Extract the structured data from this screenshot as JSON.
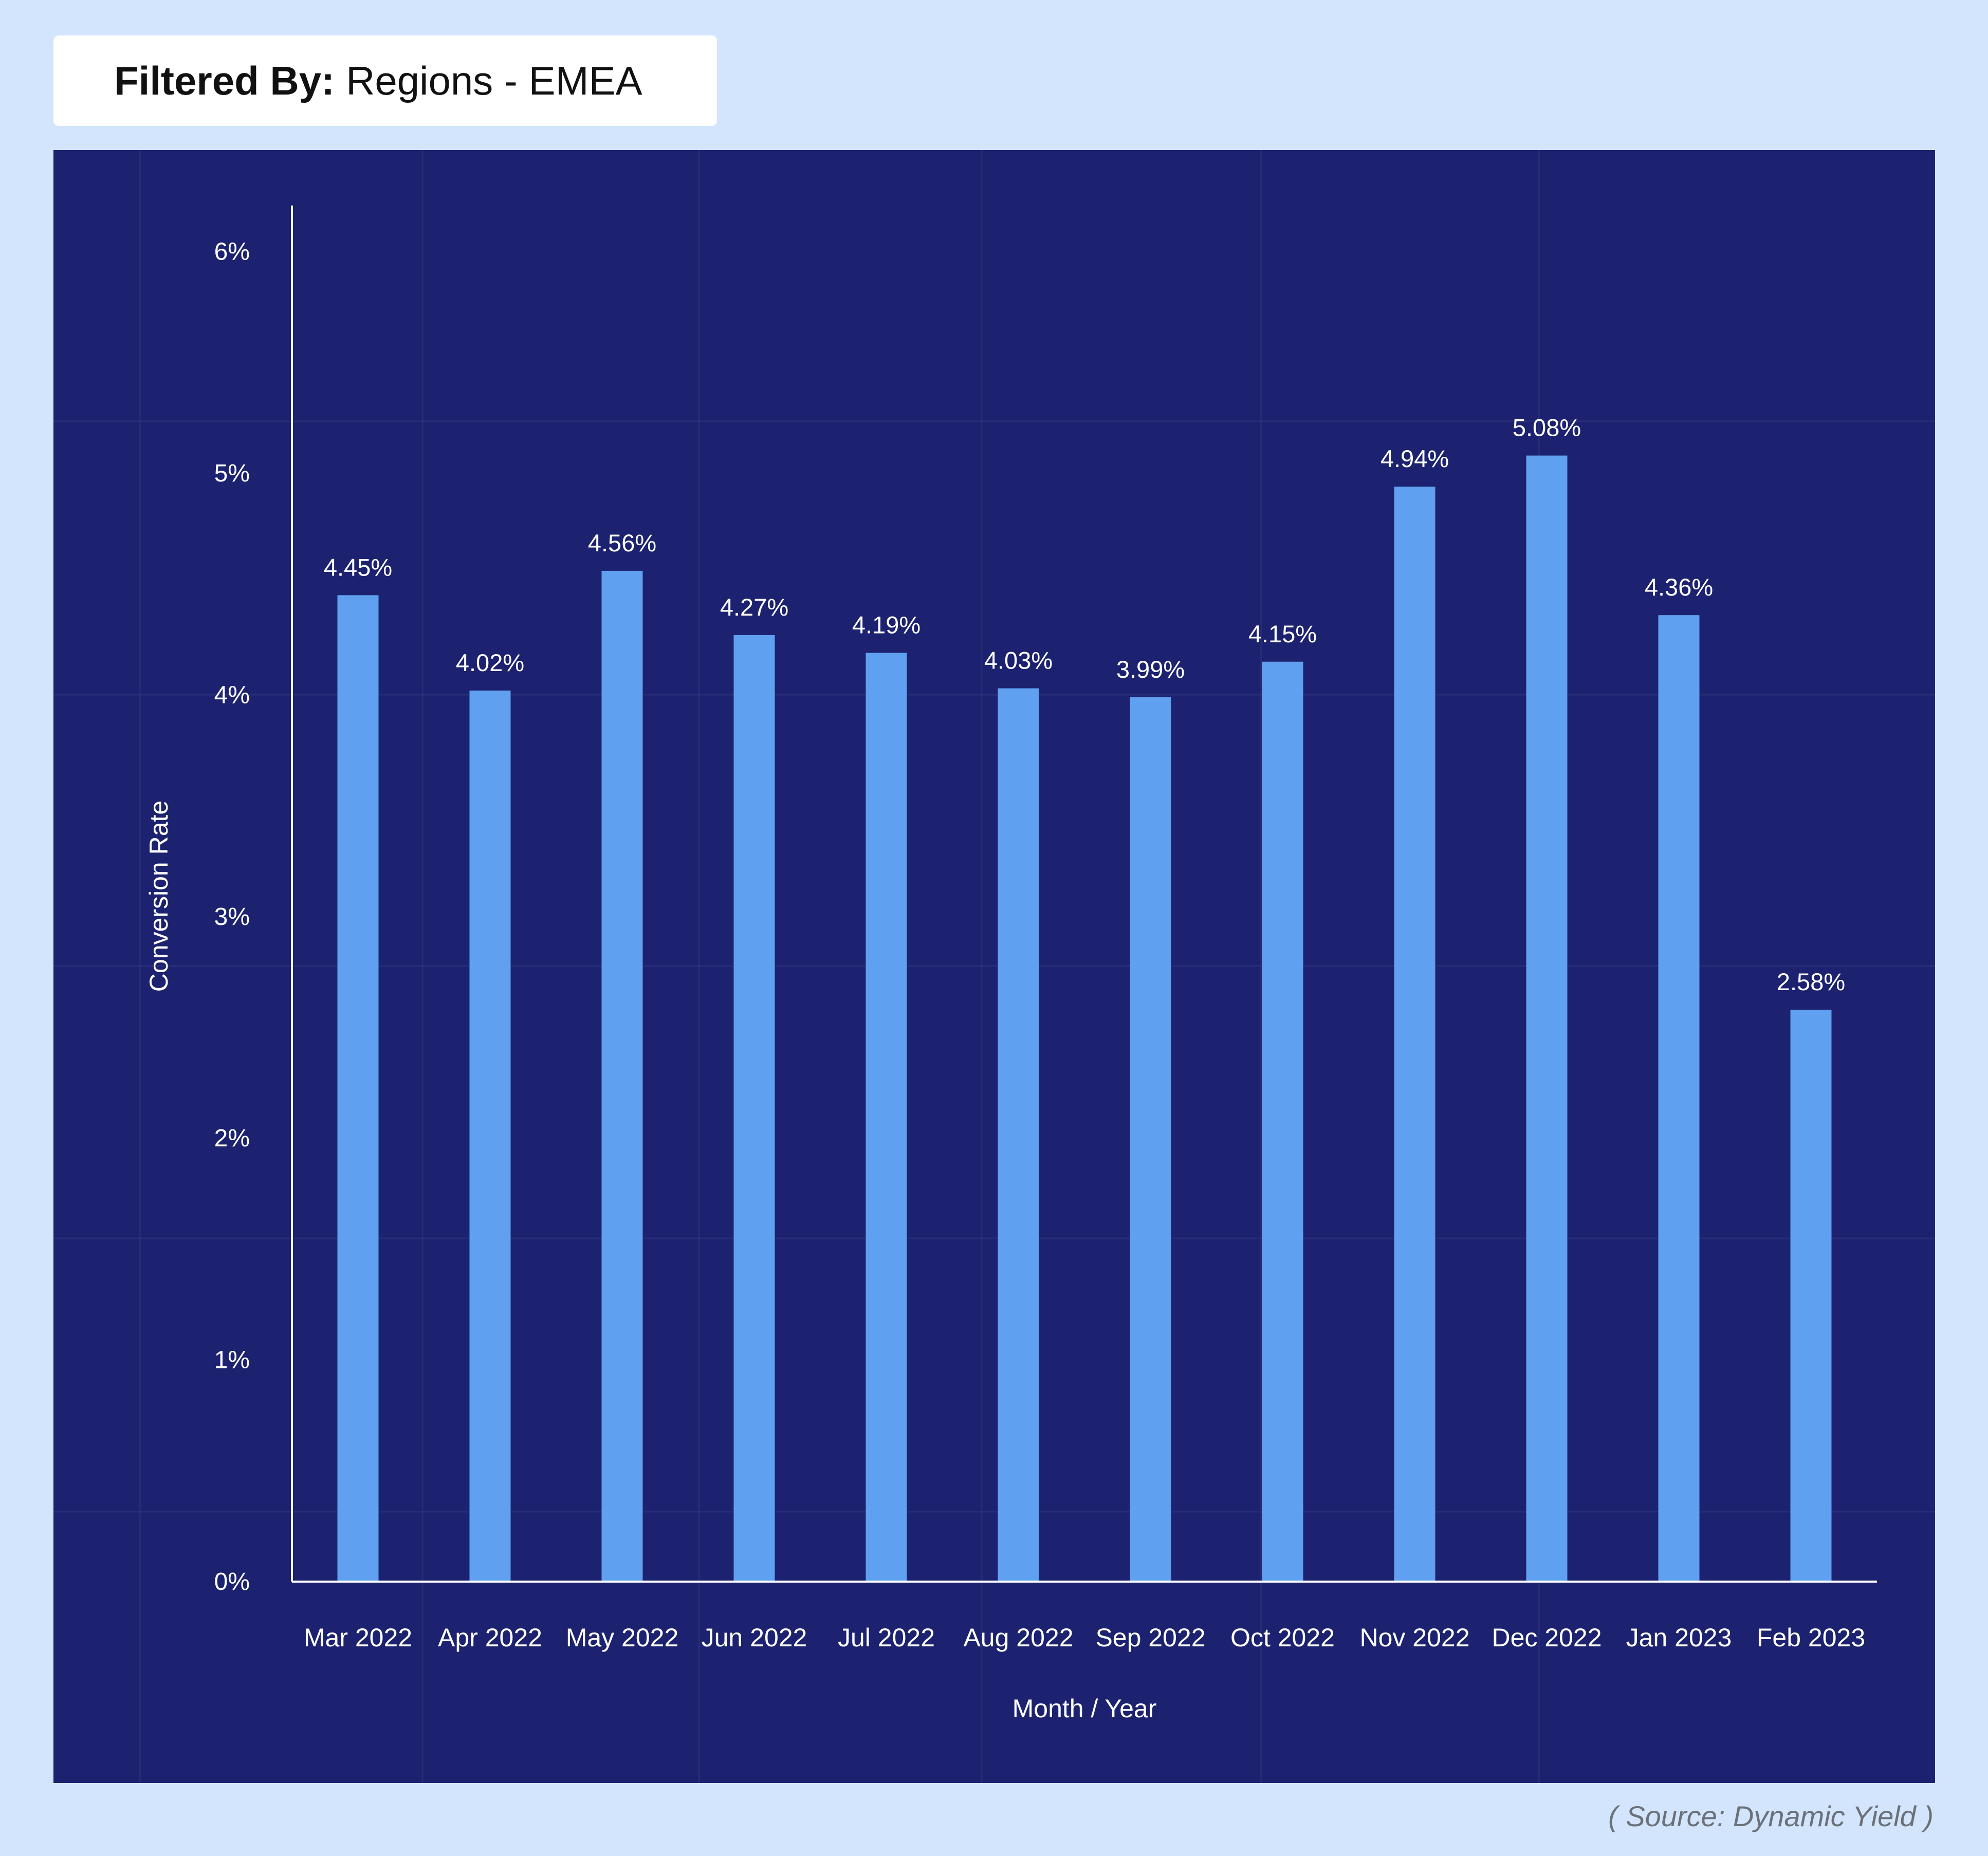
{
  "filter": {
    "label": "Filtered By:",
    "value": "Regions - EMEA"
  },
  "source": "( Source: Dynamic Yield )",
  "colors": {
    "background": "#d3e5fd",
    "panel": "#1c226f",
    "bar": "#5fa0f0",
    "text": "#ffffff"
  },
  "chart_data": {
    "type": "bar",
    "xlabel": "Month / Year",
    "ylabel": "Conversion Rate",
    "ylim": [
      0,
      6
    ],
    "yticks": [
      "0%",
      "1%",
      "2%",
      "3%",
      "4%",
      "5%",
      "6%"
    ],
    "grid": true,
    "categories": [
      "Mar 2022",
      "Apr 2022",
      "May 2022",
      "Jun 2022",
      "Jul 2022",
      "Aug 2022",
      "Sep 2022",
      "Oct 2022",
      "Nov 2022",
      "Dec 2022",
      "Jan 2023",
      "Feb 2023"
    ],
    "values": [
      4.45,
      4.02,
      4.56,
      4.27,
      4.19,
      4.03,
      3.99,
      4.15,
      4.94,
      5.08,
      4.36,
      2.58
    ],
    "labels": [
      "4.45%",
      "4.02%",
      "4.56%",
      "4.27%",
      "4.19%",
      "4.03%",
      "3.99%",
      "4.15%",
      "4.94%",
      "5.08%",
      "4.36%",
      "2.58%"
    ]
  }
}
